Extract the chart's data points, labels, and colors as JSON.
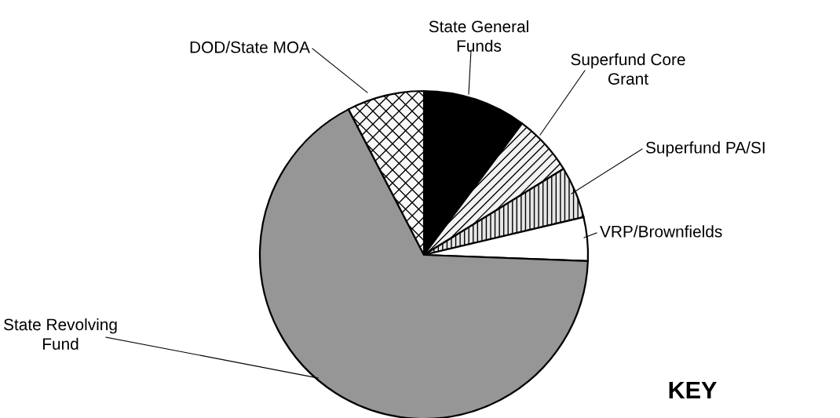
{
  "chart_data": {
    "type": "pie",
    "categories": [
      "State General\nFunds",
      "Superfund Core\nGrant",
      "Superfund PA/SI",
      "VRP/Brownfields",
      "State Revolving\nFund",
      "DOD/State MOA"
    ],
    "values": [
      10.2,
      6.0,
      5.1,
      4.3,
      66.8,
      7.6
    ],
    "colors": [
      "#000000",
      "#f2f2f2",
      "#e6e6e6",
      "#ffffff",
      "#969696",
      "#f9f9f9"
    ],
    "annotations": [
      "KEY"
    ],
    "legend": false
  }
}
